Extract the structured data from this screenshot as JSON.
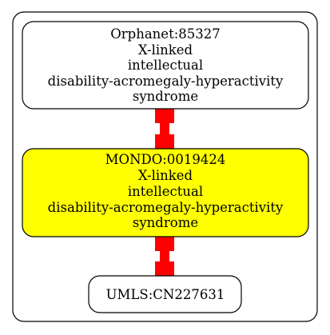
{
  "graph": {
    "nodes": [
      {
        "id": "orphanet",
        "lines": [
          "Orphanet:85327",
          "X-linked",
          "intellectual",
          "disability-acromegaly-hyperactivity",
          "syndrome"
        ],
        "fill": "#ffffff"
      },
      {
        "id": "mondo",
        "lines": [
          "MONDO:0019424",
          "X-linked",
          "intellectual",
          "disability-acromegaly-hyperactivity",
          "syndrome"
        ],
        "fill": "#ffff00"
      },
      {
        "id": "umls",
        "lines": [
          "UMLS:CN227631"
        ],
        "fill": "#ffffff"
      }
    ],
    "edges": [
      {
        "from": "orphanet",
        "to": "mondo"
      },
      {
        "from": "mondo",
        "to": "umls"
      }
    ]
  },
  "colors": {
    "edge": "#ff0000",
    "stroke": "#000000",
    "background": "#ffffff"
  }
}
